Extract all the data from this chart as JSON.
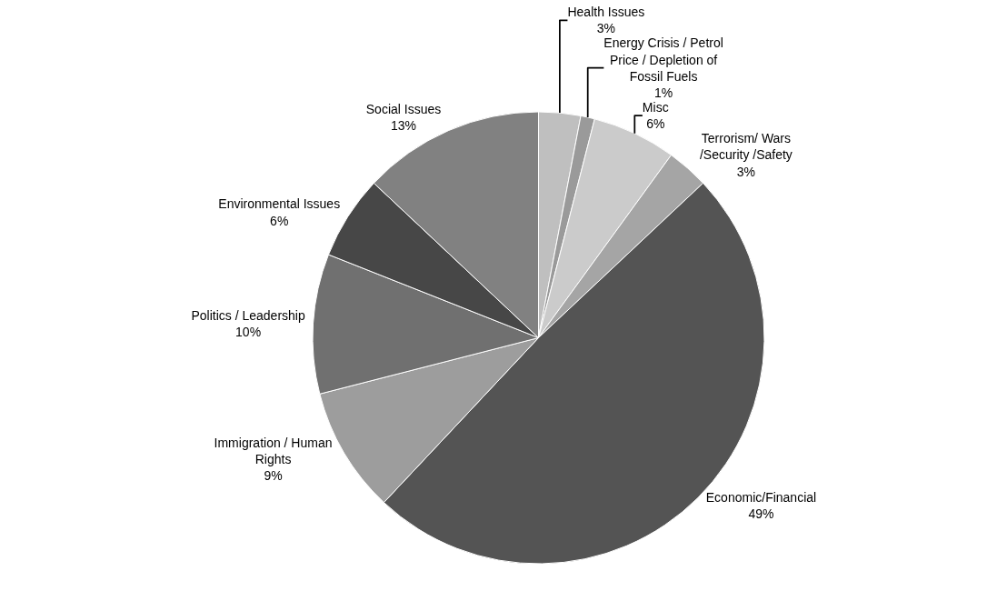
{
  "chart_data": {
    "type": "pie",
    "categories": [
      "Health Issues",
      "Energy Crisis / Petrol Price / Depletion of Fossil Fuels",
      "Misc",
      "Terrorism/ Wars /Security /Safety",
      "Economic/Financial",
      "Immigration / Human Rights",
      "Politics / Leadership",
      "Environmental Issues",
      "Social Issues"
    ],
    "values": [
      3,
      1,
      6,
      3,
      49,
      9,
      10,
      6,
      13
    ],
    "value_labels": [
      "3%",
      "1%",
      "6%",
      "3%",
      "49%",
      "9%",
      "10%",
      "6%",
      "13%"
    ],
    "colors": [
      "#bfbfbf",
      "#9a9a9a",
      "#cbcbcb",
      "#a5a5a5",
      "#545454",
      "#9d9d9d",
      "#707070",
      "#474747",
      "#818181"
    ],
    "legend": false
  }
}
